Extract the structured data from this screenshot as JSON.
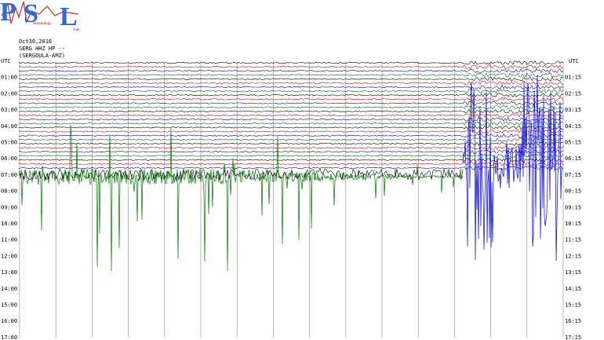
{
  "logo": {
    "letters": [
      "P",
      "S",
      "L"
    ],
    "small": [
      "Seismology",
      "Lab"
    ]
  },
  "header": [
    "Oct30,2016",
    "SERG HHZ HP --",
    "(SERGOULA-AMZ)"
  ],
  "left_axis": {
    "label": "UTC",
    "ticks": [
      "01:00",
      "02:00",
      "03:00",
      "04:00",
      "05:00",
      "06:00",
      "07:00",
      "08:00",
      "09:00",
      "10:00",
      "11:00",
      "12:00",
      "13:00",
      "14:00",
      "15:00",
      "16:00",
      "17:00"
    ]
  },
  "right_axis": {
    "label": "UTC",
    "ticks": [
      "01:15",
      "02:15",
      "03:15",
      "04:15",
      "05:15",
      "06:15",
      "07:15",
      "08:15",
      "09:15",
      "10:15",
      "11:15",
      "12:15",
      "13:15",
      "14:15",
      "15:15",
      "16:15",
      "17:15"
    ]
  }
}
